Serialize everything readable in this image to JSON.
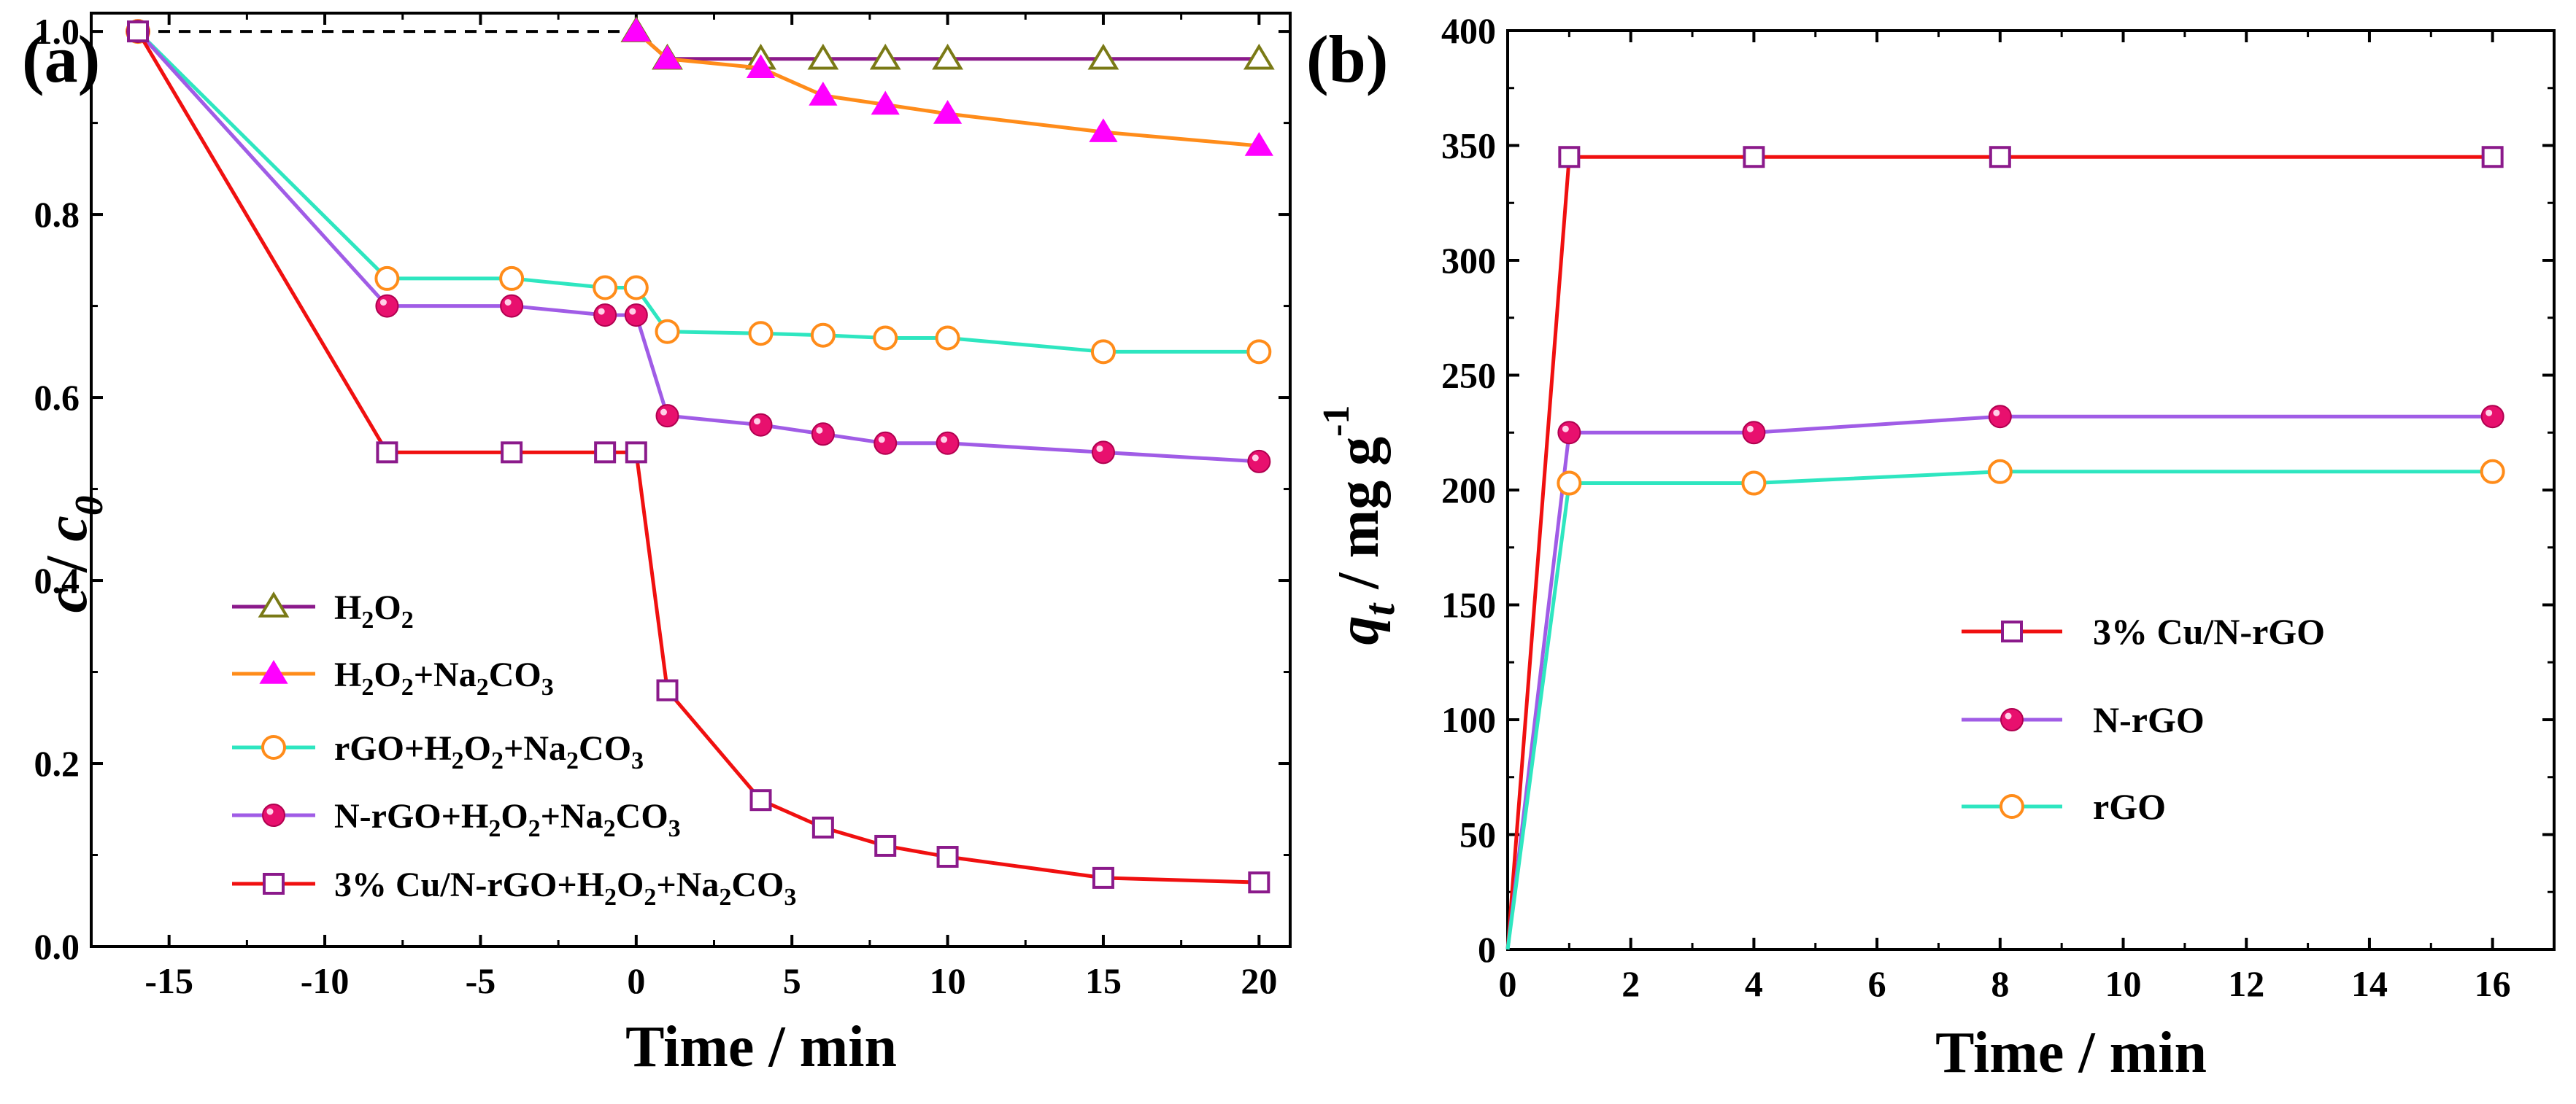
{
  "chart_data": [
    {
      "type": "line",
      "panel_label": "(a)",
      "xlabel": "Time / min",
      "ylabel_main": "c",
      "ylabel_sep": " / ",
      "ylabel_sub_base": "c",
      "ylabel_sub": "0",
      "xlim": [
        -17.5,
        21
      ],
      "ylim": [
        0,
        1.02
      ],
      "xticks": [
        -15,
        -10,
        -5,
        0,
        5,
        10,
        15,
        20
      ],
      "yticks": [
        0.0,
        0.2,
        0.4,
        0.6,
        0.8,
        1.0
      ],
      "xtick_labels": [
        "-15",
        "-10",
        "-5",
        "0",
        "5",
        "10",
        "15",
        "20"
      ],
      "ytick_labels": [
        "0.0",
        "0.2",
        "0.4",
        "0.6",
        "0.8",
        "1.0"
      ],
      "reference_line": {
        "x": [
          -16,
          0
        ],
        "y": 1.0,
        "style": "dashed",
        "color": "#000000"
      },
      "series": [
        {
          "name": "H2O2",
          "legend_parts": [
            [
              "H",
              ""
            ],
            [
              "2",
              "sub"
            ],
            [
              "O",
              ""
            ],
            [
              "2",
              "sub"
            ]
          ],
          "line_color": "#8b1a8b",
          "marker": "triangle-open",
          "marker_color": "#7a7a16",
          "x": [
            0,
            1,
            4,
            6,
            8,
            10,
            15,
            20
          ],
          "y": [
            1.0,
            0.97,
            0.97,
            0.97,
            0.97,
            0.97,
            0.97,
            0.97
          ]
        },
        {
          "name": "H2O2+Na2CO3",
          "legend_parts": [
            [
              "H",
              ""
            ],
            [
              "2",
              "sub"
            ],
            [
              "O",
              ""
            ],
            [
              "2",
              "sub"
            ],
            [
              "+Na",
              ""
            ],
            [
              "2",
              "sub"
            ],
            [
              "CO",
              ""
            ],
            [
              "3",
              "sub"
            ]
          ],
          "line_color": "#ff8c1a",
          "marker": "triangle-filled",
          "marker_color": "#ff00ff",
          "x": [
            0,
            1,
            4,
            6,
            8,
            10,
            15,
            20
          ],
          "y": [
            1.0,
            0.97,
            0.96,
            0.93,
            0.92,
            0.91,
            0.89,
            0.875
          ]
        },
        {
          "name": "rGO+H2O2+Na2CO3",
          "legend_parts": [
            [
              "rGO+H",
              ""
            ],
            [
              "2",
              "sub"
            ],
            [
              "O",
              ""
            ],
            [
              "2",
              "sub"
            ],
            [
              "+Na",
              ""
            ],
            [
              "2",
              "sub"
            ],
            [
              "CO",
              ""
            ],
            [
              "3",
              "sub"
            ]
          ],
          "line_color": "#2ee6c0",
          "marker": "circle-open",
          "marker_color": "#ff8c1a",
          "x": [
            -16,
            -8,
            -4,
            -1,
            0,
            1,
            4,
            6,
            8,
            10,
            15,
            20
          ],
          "y": [
            1.0,
            0.73,
            0.73,
            0.72,
            0.72,
            0.672,
            0.67,
            0.668,
            0.665,
            0.665,
            0.65,
            0.65
          ]
        },
        {
          "name": "N-rGO+H2O2+Na2CO3",
          "legend_parts": [
            [
              "N-rGO+H",
              ""
            ],
            [
              "2",
              "sub"
            ],
            [
              "O",
              ""
            ],
            [
              "2",
              "sub"
            ],
            [
              "+Na",
              ""
            ],
            [
              "2",
              "sub"
            ],
            [
              "CO",
              ""
            ],
            [
              "3",
              "sub"
            ]
          ],
          "line_color": "#a05ce6",
          "marker": "circle-filled",
          "marker_color": "#e8106e",
          "x": [
            -16,
            -8,
            -4,
            -1,
            0,
            1,
            4,
            6,
            8,
            10,
            15,
            20
          ],
          "y": [
            1.0,
            0.7,
            0.7,
            0.69,
            0.69,
            0.58,
            0.57,
            0.56,
            0.55,
            0.55,
            0.54,
            0.53
          ]
        },
        {
          "name": "3% Cu/N-rGO+H2O2+Na2CO3",
          "legend_parts": [
            [
              "3% Cu/N-rGO+H",
              ""
            ],
            [
              "2",
              "sub"
            ],
            [
              "O",
              ""
            ],
            [
              "2",
              "sub"
            ],
            [
              "+Na",
              ""
            ],
            [
              "2",
              "sub"
            ],
            [
              "CO",
              ""
            ],
            [
              "3",
              "sub"
            ]
          ],
          "line_color": "#f01010",
          "marker": "square-open",
          "marker_color": "#8b1a8b",
          "x": [
            -16,
            -8,
            -4,
            -1,
            0,
            1,
            4,
            6,
            8,
            10,
            15,
            20
          ],
          "y": [
            1.0,
            0.54,
            0.54,
            0.54,
            0.54,
            0.28,
            0.16,
            0.13,
            0.11,
            0.098,
            0.075,
            0.07
          ]
        }
      ]
    },
    {
      "type": "line",
      "panel_label": "(b)",
      "xlabel": "Time / min",
      "ylabel_main": "q",
      "ylabel_sub": "t",
      "ylabel_rest": " / mg g",
      "ylabel_sup": "-1",
      "xlim": [
        0,
        17
      ],
      "ylim": [
        0,
        400
      ],
      "xticks": [
        0,
        2,
        4,
        6,
        8,
        10,
        12,
        14,
        16
      ],
      "yticks": [
        0,
        50,
        100,
        150,
        200,
        250,
        300,
        350,
        400
      ],
      "xtick_labels": [
        "0",
        "2",
        "4",
        "6",
        "8",
        "10",
        "12",
        "14",
        "16"
      ],
      "ytick_labels": [
        "0",
        "50",
        "100",
        "150",
        "200",
        "250",
        "300",
        "350",
        "400"
      ],
      "series": [
        {
          "name": "3% Cu/N-rGO",
          "line_color": "#f01010",
          "marker": "square-open",
          "marker_color": "#8b1a8b",
          "x": [
            0,
            1,
            4,
            8,
            16
          ],
          "y": [
            0,
            345,
            345,
            345,
            345
          ]
        },
        {
          "name": "N-rGO",
          "line_color": "#a05ce6",
          "marker": "circle-filled",
          "marker_color": "#e8106e",
          "x": [
            0,
            1,
            4,
            8,
            16
          ],
          "y": [
            0,
            225,
            225,
            232,
            232
          ]
        },
        {
          "name": "rGO",
          "line_color": "#2ee6c0",
          "marker": "circle-open",
          "marker_color": "#ff8c1a",
          "x": [
            0,
            1,
            4,
            8,
            16
          ],
          "y": [
            0,
            203,
            203,
            208,
            208
          ]
        }
      ]
    }
  ]
}
